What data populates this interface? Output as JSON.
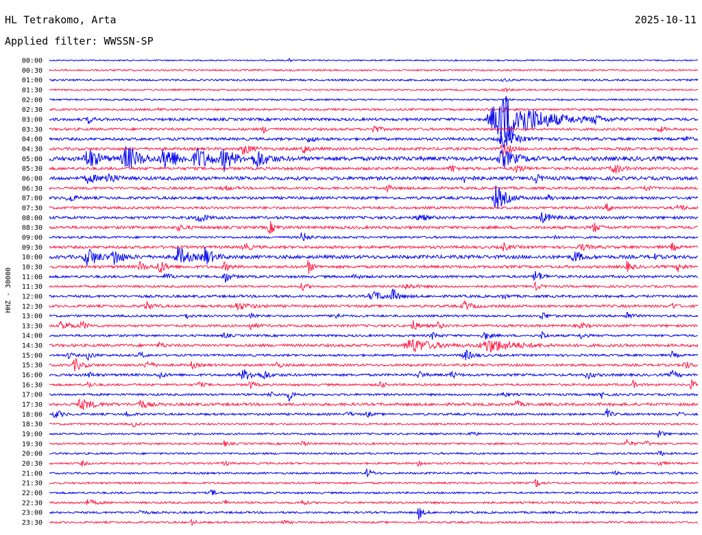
{
  "header": {
    "station": "HL Tetrakomo, Arta",
    "date": "2025-10-11",
    "filter_text": "Applied filter: WWSSN-SP"
  },
  "colors": {
    "even_rows": "#0000ee",
    "odd_rows": "#ff1744"
  },
  "chart_data": {
    "type": "line",
    "ylabel": "HHZ - 30000",
    "row_labels": [
      "00:00",
      "00:30",
      "01:00",
      "01:30",
      "02:00",
      "02:30",
      "03:00",
      "03:30",
      "04:00",
      "04:30",
      "05:00",
      "05:30",
      "06:00",
      "06:30",
      "07:00",
      "07:30",
      "08:00",
      "08:30",
      "09:00",
      "09:30",
      "10:00",
      "10:30",
      "11:00",
      "11:30",
      "12:00",
      "12:30",
      "13:00",
      "13:30",
      "14:00",
      "14:30",
      "15:00",
      "15:30",
      "16:00",
      "16:30",
      "17:00",
      "17:30",
      "18:00",
      "18:30",
      "19:00",
      "19:30",
      "20:00",
      "20:30",
      "21:00",
      "21:30",
      "22:00",
      "22:30",
      "23:00",
      "23:30"
    ],
    "grid": false,
    "rows": [
      {
        "noise": 1.0,
        "events": [
          [
            0.37,
            2,
            0.004
          ]
        ]
      },
      {
        "noise": 1.2,
        "events": []
      },
      {
        "noise": 1.3,
        "events": [
          [
            0.7,
            3,
            0.005
          ]
        ]
      },
      {
        "noise": 1.2,
        "events": [
          [
            0.7,
            4,
            0.006
          ]
        ]
      },
      {
        "noise": 1.2,
        "events": [
          [
            0.7,
            3,
            0.005
          ]
        ]
      },
      {
        "noise": 1.5,
        "events": [
          [
            0.7,
            4,
            0.006
          ],
          [
            0.17,
            2,
            0.006
          ]
        ]
      },
      {
        "noise": 2.0,
        "events": [
          [
            0.06,
            5,
            0.008
          ],
          [
            0.7,
            40,
            0.05
          ],
          [
            0.84,
            7,
            0.008
          ]
        ]
      },
      {
        "noise": 1.8,
        "events": [
          [
            0.33,
            5,
            0.006
          ],
          [
            0.5,
            6,
            0.008
          ],
          [
            0.94,
            5,
            0.006
          ]
        ]
      },
      {
        "noise": 2.0,
        "events": [
          [
            0.4,
            4,
            0.01
          ],
          [
            0.7,
            12,
            0.02
          ],
          [
            0.98,
            5,
            0.006
          ]
        ]
      },
      {
        "noise": 2.0,
        "events": [
          [
            0.3,
            8,
            0.012
          ],
          [
            0.39,
            9,
            0.008
          ],
          [
            0.7,
            10,
            0.01
          ]
        ]
      },
      {
        "noise": 3.0,
        "events": [
          [
            0.06,
            16,
            0.015
          ],
          [
            0.12,
            18,
            0.02
          ],
          [
            0.18,
            16,
            0.02
          ],
          [
            0.23,
            14,
            0.02
          ],
          [
            0.27,
            15,
            0.015
          ],
          [
            0.32,
            14,
            0.015
          ],
          [
            0.7,
            12,
            0.02
          ]
        ]
      },
      {
        "noise": 2.0,
        "events": [
          [
            0.62,
            6,
            0.008
          ],
          [
            0.72,
            6,
            0.01
          ],
          [
            0.87,
            9,
            0.01
          ]
        ]
      },
      {
        "noise": 2.5,
        "events": [
          [
            0.06,
            6,
            0.015
          ],
          [
            0.09,
            9,
            0.01
          ],
          [
            0.64,
            5,
            0.01
          ],
          [
            0.75,
            6,
            0.008
          ]
        ]
      },
      {
        "noise": 1.8,
        "events": [
          [
            0.27,
            4,
            0.008
          ],
          [
            0.52,
            6,
            0.006
          ],
          [
            0.92,
            4,
            0.006
          ]
        ]
      },
      {
        "noise": 2.0,
        "events": [
          [
            0.03,
            7,
            0.008
          ],
          [
            0.69,
            18,
            0.015
          ],
          [
            0.77,
            5,
            0.006
          ]
        ]
      },
      {
        "noise": 1.8,
        "events": [
          [
            0.86,
            5,
            0.01
          ],
          [
            0.97,
            6,
            0.008
          ]
        ]
      },
      {
        "noise": 2.0,
        "events": [
          [
            0.23,
            8,
            0.01
          ],
          [
            0.57,
            6,
            0.01
          ],
          [
            0.76,
            7,
            0.015
          ]
        ]
      },
      {
        "noise": 2.0,
        "events": [
          [
            0.2,
            5,
            0.008
          ],
          [
            0.34,
            9,
            0.008
          ],
          [
            0.84,
            7,
            0.008
          ]
        ]
      },
      {
        "noise": 1.6,
        "events": [
          [
            0.39,
            8,
            0.008
          ],
          [
            0.78,
            3,
            0.006
          ]
        ]
      },
      {
        "noise": 2.0,
        "events": [
          [
            0.3,
            7,
            0.008
          ],
          [
            0.7,
            6,
            0.008
          ],
          [
            0.82,
            5,
            0.01
          ],
          [
            0.96,
            6,
            0.006
          ]
        ]
      },
      {
        "noise": 2.5,
        "events": [
          [
            0.06,
            14,
            0.015
          ],
          [
            0.1,
            12,
            0.012
          ],
          [
            0.2,
            14,
            0.015
          ],
          [
            0.24,
            13,
            0.012
          ],
          [
            0.81,
            9,
            0.01
          ],
          [
            0.93,
            6,
            0.006
          ]
        ]
      },
      {
        "noise": 2.0,
        "events": [
          [
            0.14,
            7,
            0.008
          ],
          [
            0.17,
            10,
            0.01
          ],
          [
            0.27,
            6,
            0.008
          ],
          [
            0.4,
            10,
            0.006
          ],
          [
            0.89,
            7,
            0.008
          ],
          [
            0.97,
            6,
            0.008
          ]
        ]
      },
      {
        "noise": 1.8,
        "events": [
          [
            0.18,
            5,
            0.008
          ],
          [
            0.27,
            10,
            0.008
          ],
          [
            0.47,
            5,
            0.006
          ],
          [
            0.75,
            9,
            0.01
          ]
        ]
      },
      {
        "noise": 1.6,
        "events": [
          [
            0.39,
            5,
            0.008
          ],
          [
            0.55,
            3,
            0.02
          ],
          [
            0.75,
            6,
            0.006
          ]
        ]
      },
      {
        "noise": 1.8,
        "events": [
          [
            0.5,
            6,
            0.02
          ],
          [
            0.53,
            9,
            0.008
          ],
          [
            0.7,
            4,
            0.006
          ]
        ]
      },
      {
        "noise": 1.8,
        "events": [
          [
            0.15,
            6,
            0.01
          ],
          [
            0.29,
            5,
            0.02
          ],
          [
            0.64,
            6,
            0.012
          ],
          [
            0.96,
            5,
            0.006
          ]
        ]
      },
      {
        "noise": 1.6,
        "events": [
          [
            0.21,
            4,
            0.006
          ],
          [
            0.31,
            6,
            0.006
          ],
          [
            0.44,
            7,
            0.006
          ],
          [
            0.76,
            6,
            0.008
          ],
          [
            0.89,
            6,
            0.008
          ]
        ]
      },
      {
        "noise": 1.8,
        "events": [
          [
            0.02,
            7,
            0.012
          ],
          [
            0.05,
            6,
            0.008
          ],
          [
            0.31,
            5,
            0.008
          ],
          [
            0.56,
            8,
            0.008
          ],
          [
            0.6,
            5,
            0.006
          ],
          [
            0.82,
            5,
            0.006
          ]
        ]
      },
      {
        "noise": 1.6,
        "events": [
          [
            0.27,
            4,
            0.006
          ],
          [
            0.59,
            5,
            0.008
          ],
          [
            0.67,
            7,
            0.008
          ],
          [
            0.76,
            6,
            0.006
          ],
          [
            0.82,
            5,
            0.006
          ]
        ]
      },
      {
        "noise": 2.0,
        "events": [
          [
            0.17,
            5,
            0.006
          ],
          [
            0.56,
            10,
            0.03
          ],
          [
            0.68,
            9,
            0.04
          ]
        ]
      },
      {
        "noise": 1.6,
        "events": [
          [
            0.03,
            5,
            0.006
          ],
          [
            0.06,
            6,
            0.008
          ],
          [
            0.14,
            5,
            0.006
          ],
          [
            0.64,
            8,
            0.012
          ],
          [
            0.96,
            5,
            0.006
          ]
        ]
      },
      {
        "noise": 1.8,
        "events": [
          [
            0.04,
            9,
            0.01
          ],
          [
            0.15,
            6,
            0.008
          ],
          [
            0.22,
            5,
            0.006
          ],
          [
            0.35,
            5,
            0.006
          ],
          [
            0.98,
            6,
            0.008
          ]
        ]
      },
      {
        "noise": 1.8,
        "events": [
          [
            0.06,
            5,
            0.006
          ],
          [
            0.17,
            6,
            0.006
          ],
          [
            0.3,
            7,
            0.02
          ],
          [
            0.33,
            6,
            0.008
          ],
          [
            0.57,
            6,
            0.006
          ],
          [
            0.62,
            6,
            0.006
          ],
          [
            0.83,
            6,
            0.008
          ],
          [
            0.96,
            6,
            0.008
          ]
        ]
      },
      {
        "noise": 1.6,
        "events": [
          [
            0.06,
            5,
            0.006
          ],
          [
            0.23,
            5,
            0.006
          ],
          [
            0.31,
            6,
            0.006
          ],
          [
            0.51,
            6,
            0.006
          ],
          [
            0.9,
            5,
            0.006
          ],
          [
            0.99,
            7,
            0.006
          ]
        ]
      },
      {
        "noise": 1.6,
        "events": [
          [
            0.34,
            4,
            0.008
          ],
          [
            0.37,
            9,
            0.006
          ],
          [
            0.7,
            4,
            0.006
          ],
          [
            0.85,
            6,
            0.006
          ]
        ]
      },
      {
        "noise": 2.0,
        "events": [
          [
            0.05,
            7,
            0.02
          ],
          [
            0.14,
            7,
            0.01
          ],
          [
            0.72,
            6,
            0.006
          ]
        ]
      },
      {
        "noise": 1.6,
        "events": [
          [
            0.01,
            6,
            0.01
          ],
          [
            0.12,
            5,
            0.006
          ],
          [
            0.46,
            4,
            0.006
          ],
          [
            0.49,
            4,
            0.006
          ],
          [
            0.86,
            7,
            0.006
          ],
          [
            0.97,
            3,
            0.006
          ]
        ]
      },
      {
        "noise": 1.4,
        "events": [
          [
            0.13,
            4,
            0.006
          ]
        ]
      },
      {
        "noise": 1.4,
        "events": [
          [
            0.65,
            4,
            0.006
          ],
          [
            0.94,
            6,
            0.006
          ]
        ]
      },
      {
        "noise": 1.4,
        "events": [
          [
            0.27,
            4,
            0.006
          ],
          [
            0.39,
            4,
            0.006
          ],
          [
            0.89,
            6,
            0.008
          ],
          [
            0.92,
            4,
            0.006
          ]
        ]
      },
      {
        "noise": 1.4,
        "events": [
          [
            0.94,
            5,
            0.006
          ]
        ]
      },
      {
        "noise": 1.4,
        "events": [
          [
            0.05,
            4,
            0.006
          ],
          [
            0.27,
            4,
            0.006
          ],
          [
            0.57,
            5,
            0.006
          ],
          [
            0.94,
            5,
            0.006
          ]
        ]
      },
      {
        "noise": 1.4,
        "events": [
          [
            0.49,
            6,
            0.008
          ],
          [
            0.87,
            4,
            0.006
          ]
        ]
      },
      {
        "noise": 1.4,
        "events": [
          [
            0.75,
            7,
            0.006
          ]
        ]
      },
      {
        "noise": 1.4,
        "events": [
          [
            0.25,
            5,
            0.006
          ]
        ]
      },
      {
        "noise": 1.5,
        "events": [
          [
            0.06,
            4,
            0.012
          ],
          [
            0.27,
            4,
            0.006
          ],
          [
            0.39,
            4,
            0.006
          ]
        ]
      },
      {
        "noise": 1.5,
        "events": [
          [
            0.14,
            4,
            0.006
          ],
          [
            0.57,
            10,
            0.006
          ]
        ]
      },
      {
        "noise": 1.4,
        "events": [
          [
            0.22,
            4,
            0.006
          ],
          [
            0.36,
            3,
            0.006
          ]
        ]
      }
    ]
  }
}
